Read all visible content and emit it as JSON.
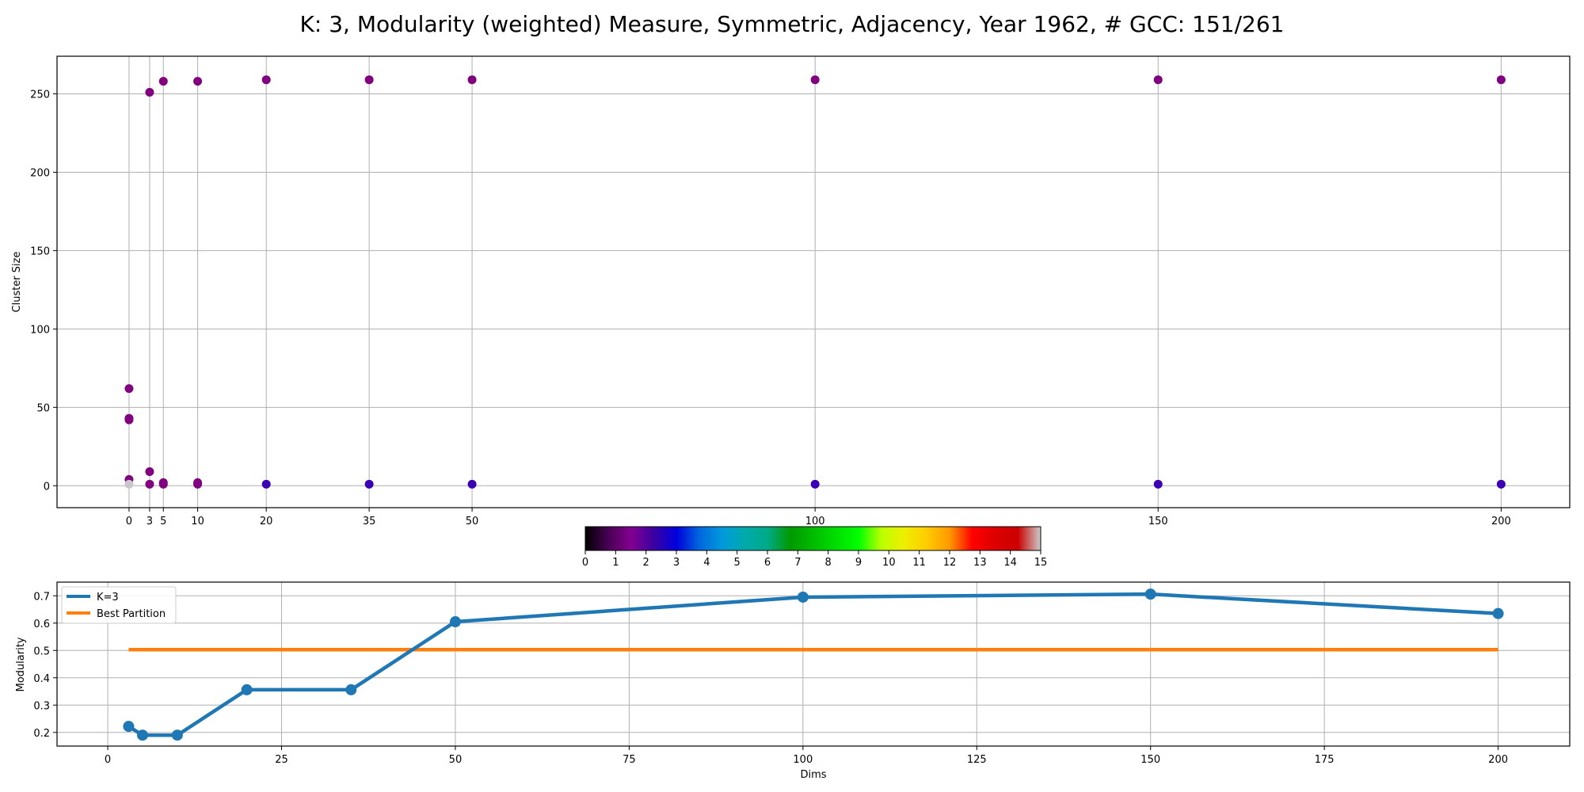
{
  "title": "K: 3, Modularity (weighted) Measure, Symmetric, Adjacency, Year 1962, # GCC: 151/261",
  "chart_data": [
    {
      "type": "scatter",
      "ylabel": "Cluster Size",
      "xlabel": "",
      "x_ticks": [
        0,
        3,
        5,
        10,
        20,
        35,
        50,
        100,
        150,
        200
      ],
      "xlim": [
        -10.5,
        210
      ],
      "y_ticks": [
        0,
        50,
        100,
        150,
        200,
        250
      ],
      "ylim": [
        -14,
        274
      ],
      "grid": "vertical lines at x ticks, horizontal lines at y ticks",
      "point_color": "#800080",
      "points": [
        {
          "x": 0,
          "y": 62,
          "color": "#800080"
        },
        {
          "x": 0,
          "y": 43,
          "color": "#800080"
        },
        {
          "x": 0,
          "y": 42,
          "color": "#800080"
        },
        {
          "x": 0,
          "y": 4,
          "color": "#800080"
        },
        {
          "x": 0,
          "y": 1,
          "color": "#c8c8c8"
        },
        {
          "x": 3,
          "y": 251,
          "color": "#800080"
        },
        {
          "x": 3,
          "y": 9,
          "color": "#800080"
        },
        {
          "x": 3,
          "y": 1,
          "color": "#800080"
        },
        {
          "x": 5,
          "y": 258,
          "color": "#800080"
        },
        {
          "x": 5,
          "y": 2,
          "color": "#800080"
        },
        {
          "x": 5,
          "y": 1,
          "color": "#800080"
        },
        {
          "x": 10,
          "y": 258,
          "color": "#800080"
        },
        {
          "x": 10,
          "y": 2,
          "color": "#800080"
        },
        {
          "x": 10,
          "y": 1,
          "color": "#800080"
        },
        {
          "x": 20,
          "y": 259,
          "color": "#800080"
        },
        {
          "x": 20,
          "y": 1,
          "color": "#3c00b4"
        },
        {
          "x": 35,
          "y": 259,
          "color": "#800080"
        },
        {
          "x": 35,
          "y": 1,
          "color": "#3c00b4"
        },
        {
          "x": 50,
          "y": 259,
          "color": "#800080"
        },
        {
          "x": 50,
          "y": 1,
          "color": "#3c00b4"
        },
        {
          "x": 100,
          "y": 259,
          "color": "#800080"
        },
        {
          "x": 100,
          "y": 1,
          "color": "#3c00b4"
        },
        {
          "x": 150,
          "y": 259,
          "color": "#800080"
        },
        {
          "x": 150,
          "y": 1,
          "color": "#3c00b4"
        },
        {
          "x": 200,
          "y": 259,
          "color": "#800080"
        },
        {
          "x": 200,
          "y": 1,
          "color": "#3c00b4"
        }
      ]
    },
    {
      "type": "colorbar",
      "colormap": "nipy_spectral",
      "ticks": [
        0,
        1,
        2,
        3,
        4,
        5,
        6,
        7,
        8,
        9,
        10,
        11,
        12,
        13,
        14,
        15
      ],
      "range": [
        0,
        15
      ]
    },
    {
      "type": "line",
      "xlabel": "Dims",
      "ylabel": "Modularity",
      "x_ticks": [
        0,
        25,
        50,
        75,
        100,
        125,
        150,
        175,
        200
      ],
      "xlim": [
        -7.3,
        210.3
      ],
      "y_ticks": [
        0.2,
        0.3,
        0.4,
        0.5,
        0.6,
        0.7
      ],
      "ylim": [
        0.15,
        0.75
      ],
      "grid": true,
      "legend_position": "upper-left",
      "series": [
        {
          "name": "K=3",
          "color": "#1f77b4",
          "markers": true,
          "x": [
            3,
            5,
            10,
            20,
            35,
            50,
            100,
            150,
            200
          ],
          "y": [
            0.222,
            0.19,
            0.19,
            0.356,
            0.356,
            0.605,
            0.695,
            0.706,
            0.635
          ]
        },
        {
          "name": "Best Partition",
          "color": "#ff7f0e",
          "markers": false,
          "x": [
            3,
            200
          ],
          "y": [
            0.503,
            0.503
          ]
        }
      ]
    }
  ]
}
